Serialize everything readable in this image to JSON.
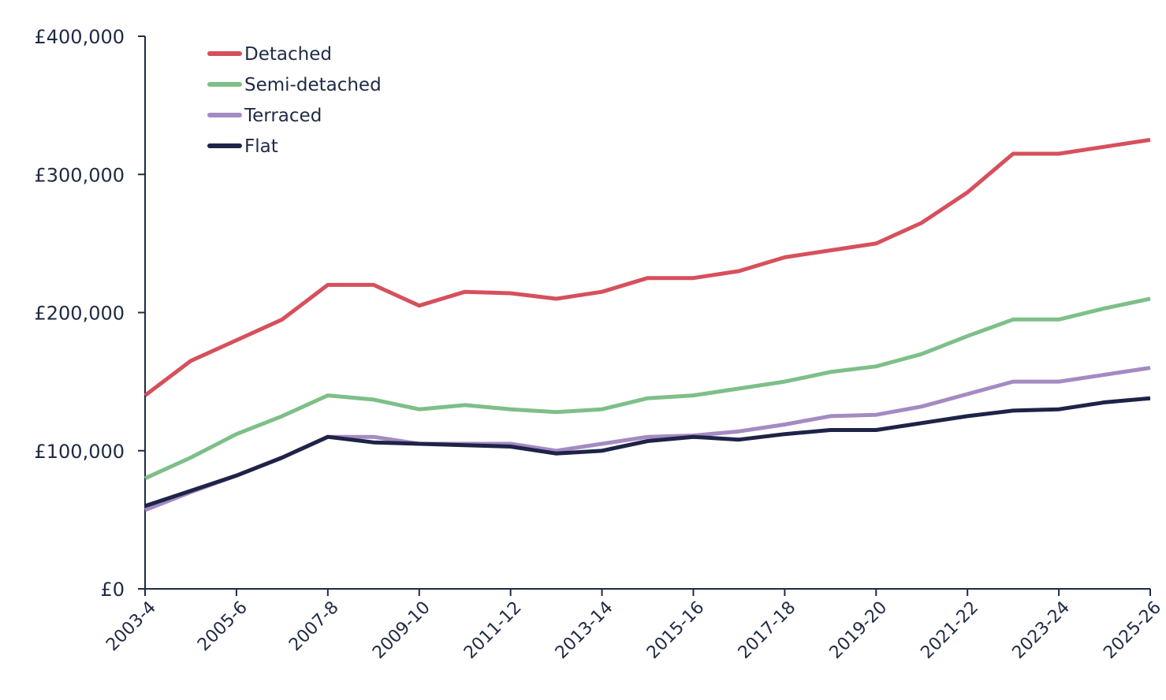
{
  "chart_data": {
    "type": "line",
    "title": "",
    "xlabel": "",
    "ylabel": "",
    "x": [
      "2003-4",
      "2004-5",
      "2005-6",
      "2006-7",
      "2007-8",
      "2008-9",
      "2009-10",
      "2010-11",
      "2011-12",
      "2012-13",
      "2013-14",
      "2014-15",
      "2015-16",
      "2016-17",
      "2017-18",
      "2018-19",
      "2019-20",
      "2020-21",
      "2021-22",
      "2022-23",
      "2023-24",
      "2024-25",
      "2025-26"
    ],
    "x_tick_labels": [
      "2003-4",
      "2005-6",
      "2007-8",
      "2009-10",
      "2011-12",
      "2013-14",
      "2015-16",
      "2017-18",
      "2019-20",
      "2021-22",
      "2023-24",
      "2025-26"
    ],
    "ylim": [
      0,
      400000
    ],
    "y_ticks": [
      0,
      100000,
      200000,
      300000,
      400000
    ],
    "y_tick_labels": [
      "£0",
      "£100,000",
      "£200,000",
      "£300,000",
      "£400,000"
    ],
    "grid": false,
    "legend_position": "top-left",
    "series": [
      {
        "name": "Detached",
        "color": "#d6505c",
        "values": [
          140000,
          165000,
          180000,
          195000,
          220000,
          220000,
          205000,
          215000,
          214000,
          210000,
          215000,
          225000,
          225000,
          230000,
          240000,
          245000,
          250000,
          265000,
          287000,
          315000,
          315000,
          320000,
          325000
        ]
      },
      {
        "name": "Semi-detached",
        "color": "#7dbf88",
        "values": [
          80000,
          95000,
          112000,
          125000,
          140000,
          137000,
          130000,
          133000,
          130000,
          128000,
          130000,
          138000,
          140000,
          145000,
          150000,
          157000,
          161000,
          170000,
          183000,
          195000,
          195000,
          203000,
          210000
        ]
      },
      {
        "name": "Terraced",
        "color": "#a58ac2",
        "values": [
          57000,
          70000,
          82000,
          95000,
          110000,
          110000,
          105000,
          105000,
          105000,
          100000,
          105000,
          110000,
          111000,
          114000,
          119000,
          125000,
          126000,
          132000,
          141000,
          150000,
          150000,
          155000,
          160000
        ]
      },
      {
        "name": "Flat",
        "color": "#1e2347",
        "values": [
          60000,
          71000,
          82000,
          95000,
          110000,
          106000,
          105000,
          104000,
          103000,
          98000,
          100000,
          107000,
          110000,
          108000,
          112000,
          115000,
          115000,
          120000,
          125000,
          129000,
          130000,
          135000,
          138000
        ]
      }
    ]
  }
}
